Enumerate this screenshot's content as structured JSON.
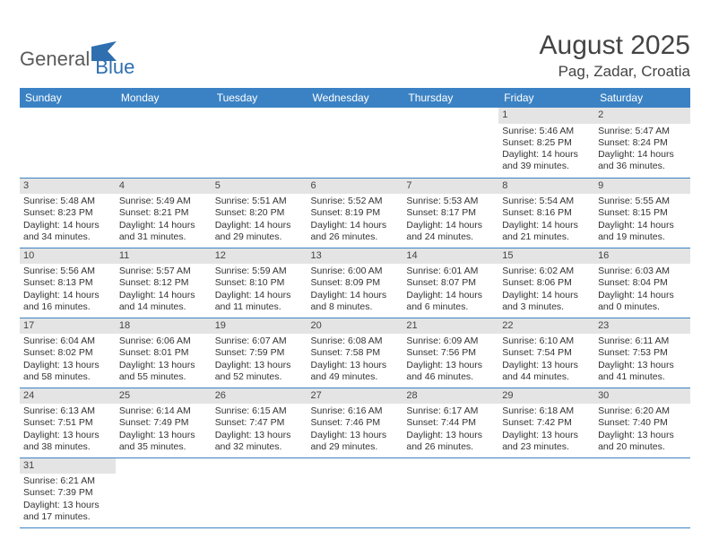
{
  "brand": {
    "part1": "General",
    "part2": "Blue"
  },
  "title": "August 2025",
  "location": "Pag, Zadar, Croatia",
  "colors": {
    "header_bg": "#3b82c4",
    "header_text": "#ffffff",
    "daynum_bg": "#e4e4e4",
    "rule": "#3b82c4",
    "logo_gray": "#5a5a5a",
    "logo_blue": "#2f6fb0"
  },
  "weekdays": [
    "Sunday",
    "Monday",
    "Tuesday",
    "Wednesday",
    "Thursday",
    "Friday",
    "Saturday"
  ],
  "weeks": [
    [
      null,
      null,
      null,
      null,
      null,
      {
        "n": "1",
        "sr": "5:46 AM",
        "ss": "8:25 PM",
        "dl": "14 hours and 39 minutes."
      },
      {
        "n": "2",
        "sr": "5:47 AM",
        "ss": "8:24 PM",
        "dl": "14 hours and 36 minutes."
      }
    ],
    [
      {
        "n": "3",
        "sr": "5:48 AM",
        "ss": "8:23 PM",
        "dl": "14 hours and 34 minutes."
      },
      {
        "n": "4",
        "sr": "5:49 AM",
        "ss": "8:21 PM",
        "dl": "14 hours and 31 minutes."
      },
      {
        "n": "5",
        "sr": "5:51 AM",
        "ss": "8:20 PM",
        "dl": "14 hours and 29 minutes."
      },
      {
        "n": "6",
        "sr": "5:52 AM",
        "ss": "8:19 PM",
        "dl": "14 hours and 26 minutes."
      },
      {
        "n": "7",
        "sr": "5:53 AM",
        "ss": "8:17 PM",
        "dl": "14 hours and 24 minutes."
      },
      {
        "n": "8",
        "sr": "5:54 AM",
        "ss": "8:16 PM",
        "dl": "14 hours and 21 minutes."
      },
      {
        "n": "9",
        "sr": "5:55 AM",
        "ss": "8:15 PM",
        "dl": "14 hours and 19 minutes."
      }
    ],
    [
      {
        "n": "10",
        "sr": "5:56 AM",
        "ss": "8:13 PM",
        "dl": "14 hours and 16 minutes."
      },
      {
        "n": "11",
        "sr": "5:57 AM",
        "ss": "8:12 PM",
        "dl": "14 hours and 14 minutes."
      },
      {
        "n": "12",
        "sr": "5:59 AM",
        "ss": "8:10 PM",
        "dl": "14 hours and 11 minutes."
      },
      {
        "n": "13",
        "sr": "6:00 AM",
        "ss": "8:09 PM",
        "dl": "14 hours and 8 minutes."
      },
      {
        "n": "14",
        "sr": "6:01 AM",
        "ss": "8:07 PM",
        "dl": "14 hours and 6 minutes."
      },
      {
        "n": "15",
        "sr": "6:02 AM",
        "ss": "8:06 PM",
        "dl": "14 hours and 3 minutes."
      },
      {
        "n": "16",
        "sr": "6:03 AM",
        "ss": "8:04 PM",
        "dl": "14 hours and 0 minutes."
      }
    ],
    [
      {
        "n": "17",
        "sr": "6:04 AM",
        "ss": "8:02 PM",
        "dl": "13 hours and 58 minutes."
      },
      {
        "n": "18",
        "sr": "6:06 AM",
        "ss": "8:01 PM",
        "dl": "13 hours and 55 minutes."
      },
      {
        "n": "19",
        "sr": "6:07 AM",
        "ss": "7:59 PM",
        "dl": "13 hours and 52 minutes."
      },
      {
        "n": "20",
        "sr": "6:08 AM",
        "ss": "7:58 PM",
        "dl": "13 hours and 49 minutes."
      },
      {
        "n": "21",
        "sr": "6:09 AM",
        "ss": "7:56 PM",
        "dl": "13 hours and 46 minutes."
      },
      {
        "n": "22",
        "sr": "6:10 AM",
        "ss": "7:54 PM",
        "dl": "13 hours and 44 minutes."
      },
      {
        "n": "23",
        "sr": "6:11 AM",
        "ss": "7:53 PM",
        "dl": "13 hours and 41 minutes."
      }
    ],
    [
      {
        "n": "24",
        "sr": "6:13 AM",
        "ss": "7:51 PM",
        "dl": "13 hours and 38 minutes."
      },
      {
        "n": "25",
        "sr": "6:14 AM",
        "ss": "7:49 PM",
        "dl": "13 hours and 35 minutes."
      },
      {
        "n": "26",
        "sr": "6:15 AM",
        "ss": "7:47 PM",
        "dl": "13 hours and 32 minutes."
      },
      {
        "n": "27",
        "sr": "6:16 AM",
        "ss": "7:46 PM",
        "dl": "13 hours and 29 minutes."
      },
      {
        "n": "28",
        "sr": "6:17 AM",
        "ss": "7:44 PM",
        "dl": "13 hours and 26 minutes."
      },
      {
        "n": "29",
        "sr": "6:18 AM",
        "ss": "7:42 PM",
        "dl": "13 hours and 23 minutes."
      },
      {
        "n": "30",
        "sr": "6:20 AM",
        "ss": "7:40 PM",
        "dl": "13 hours and 20 minutes."
      }
    ],
    [
      {
        "n": "31",
        "sr": "6:21 AM",
        "ss": "7:39 PM",
        "dl": "13 hours and 17 minutes."
      },
      null,
      null,
      null,
      null,
      null,
      null
    ]
  ],
  "labels": {
    "sunrise": "Sunrise:",
    "sunset": "Sunset:",
    "daylight": "Daylight:"
  }
}
